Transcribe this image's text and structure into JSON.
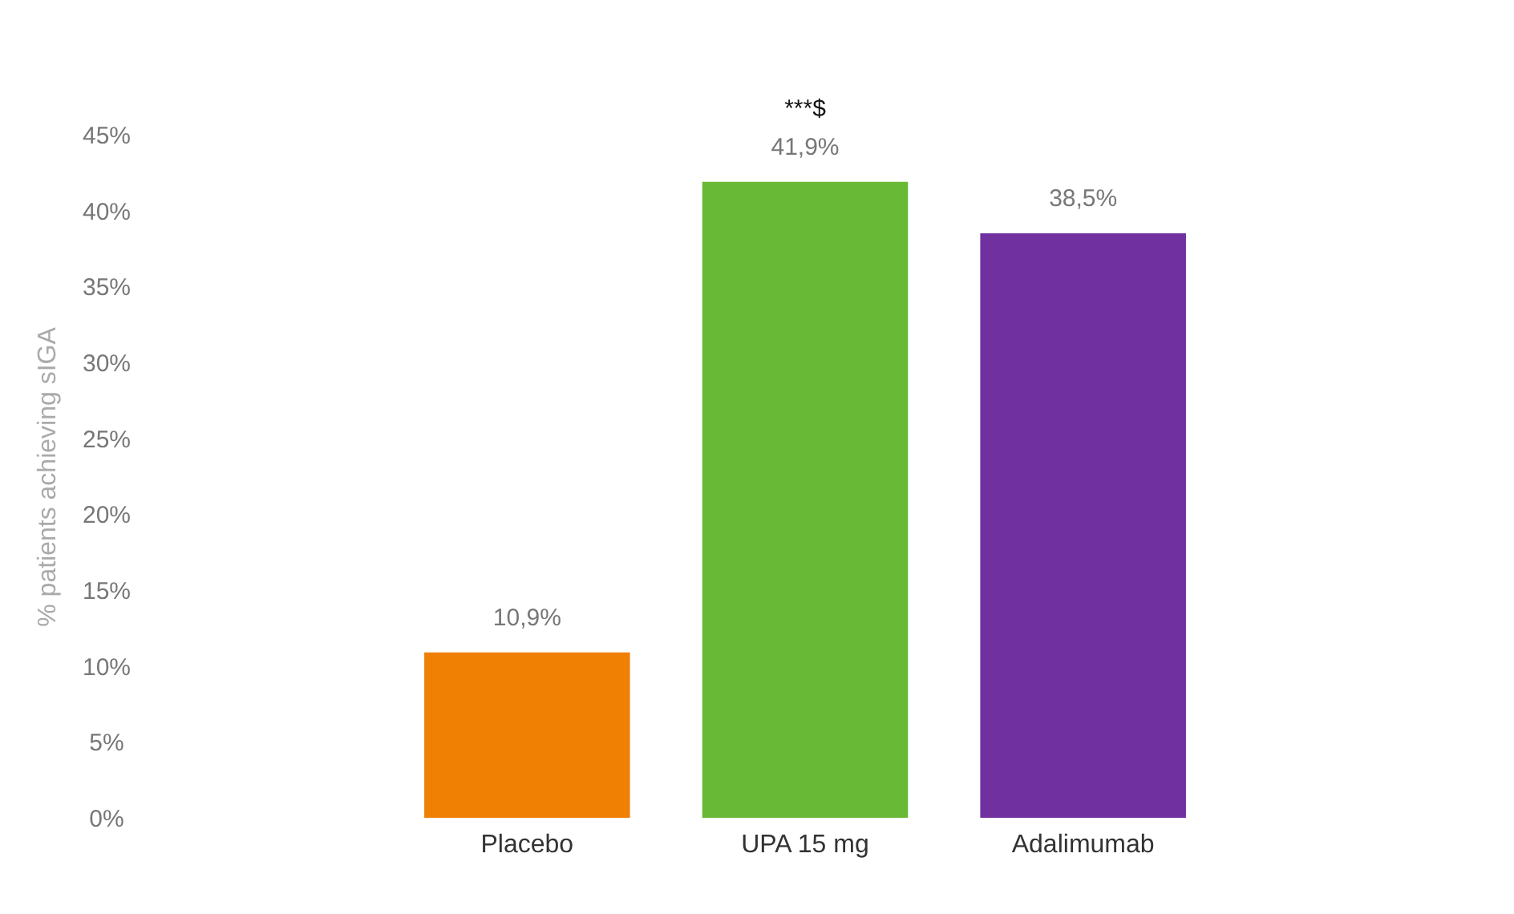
{
  "chart_data": {
    "type": "bar",
    "ylabel": "% patients achieving sIGA",
    "categories": [
      "Placebo",
      "UPA 15 mg",
      "Adalimumab"
    ],
    "values": [
      10.9,
      41.9,
      38.5
    ],
    "colors": [
      "#f08004",
      "#68b936",
      "#7030a0"
    ],
    "value_labels": [
      "10,9%",
      "41,9%",
      "38,5%"
    ],
    "ylim": [
      0,
      45
    ],
    "yticks": [
      {
        "value": 0,
        "label": "0%"
      },
      {
        "value": 5,
        "label": "5%"
      },
      {
        "value": 10,
        "label": "10%"
      },
      {
        "value": 15,
        "label": "15%"
      },
      {
        "value": 20,
        "label": "20%"
      },
      {
        "value": 25,
        "label": "25%"
      },
      {
        "value": 30,
        "label": "30%"
      },
      {
        "value": 35,
        "label": "35%"
      },
      {
        "value": 40,
        "label": "40%"
      },
      {
        "value": 45,
        "label": "45%"
      }
    ],
    "annotations": [
      "***$"
    ],
    "grid": false
  }
}
